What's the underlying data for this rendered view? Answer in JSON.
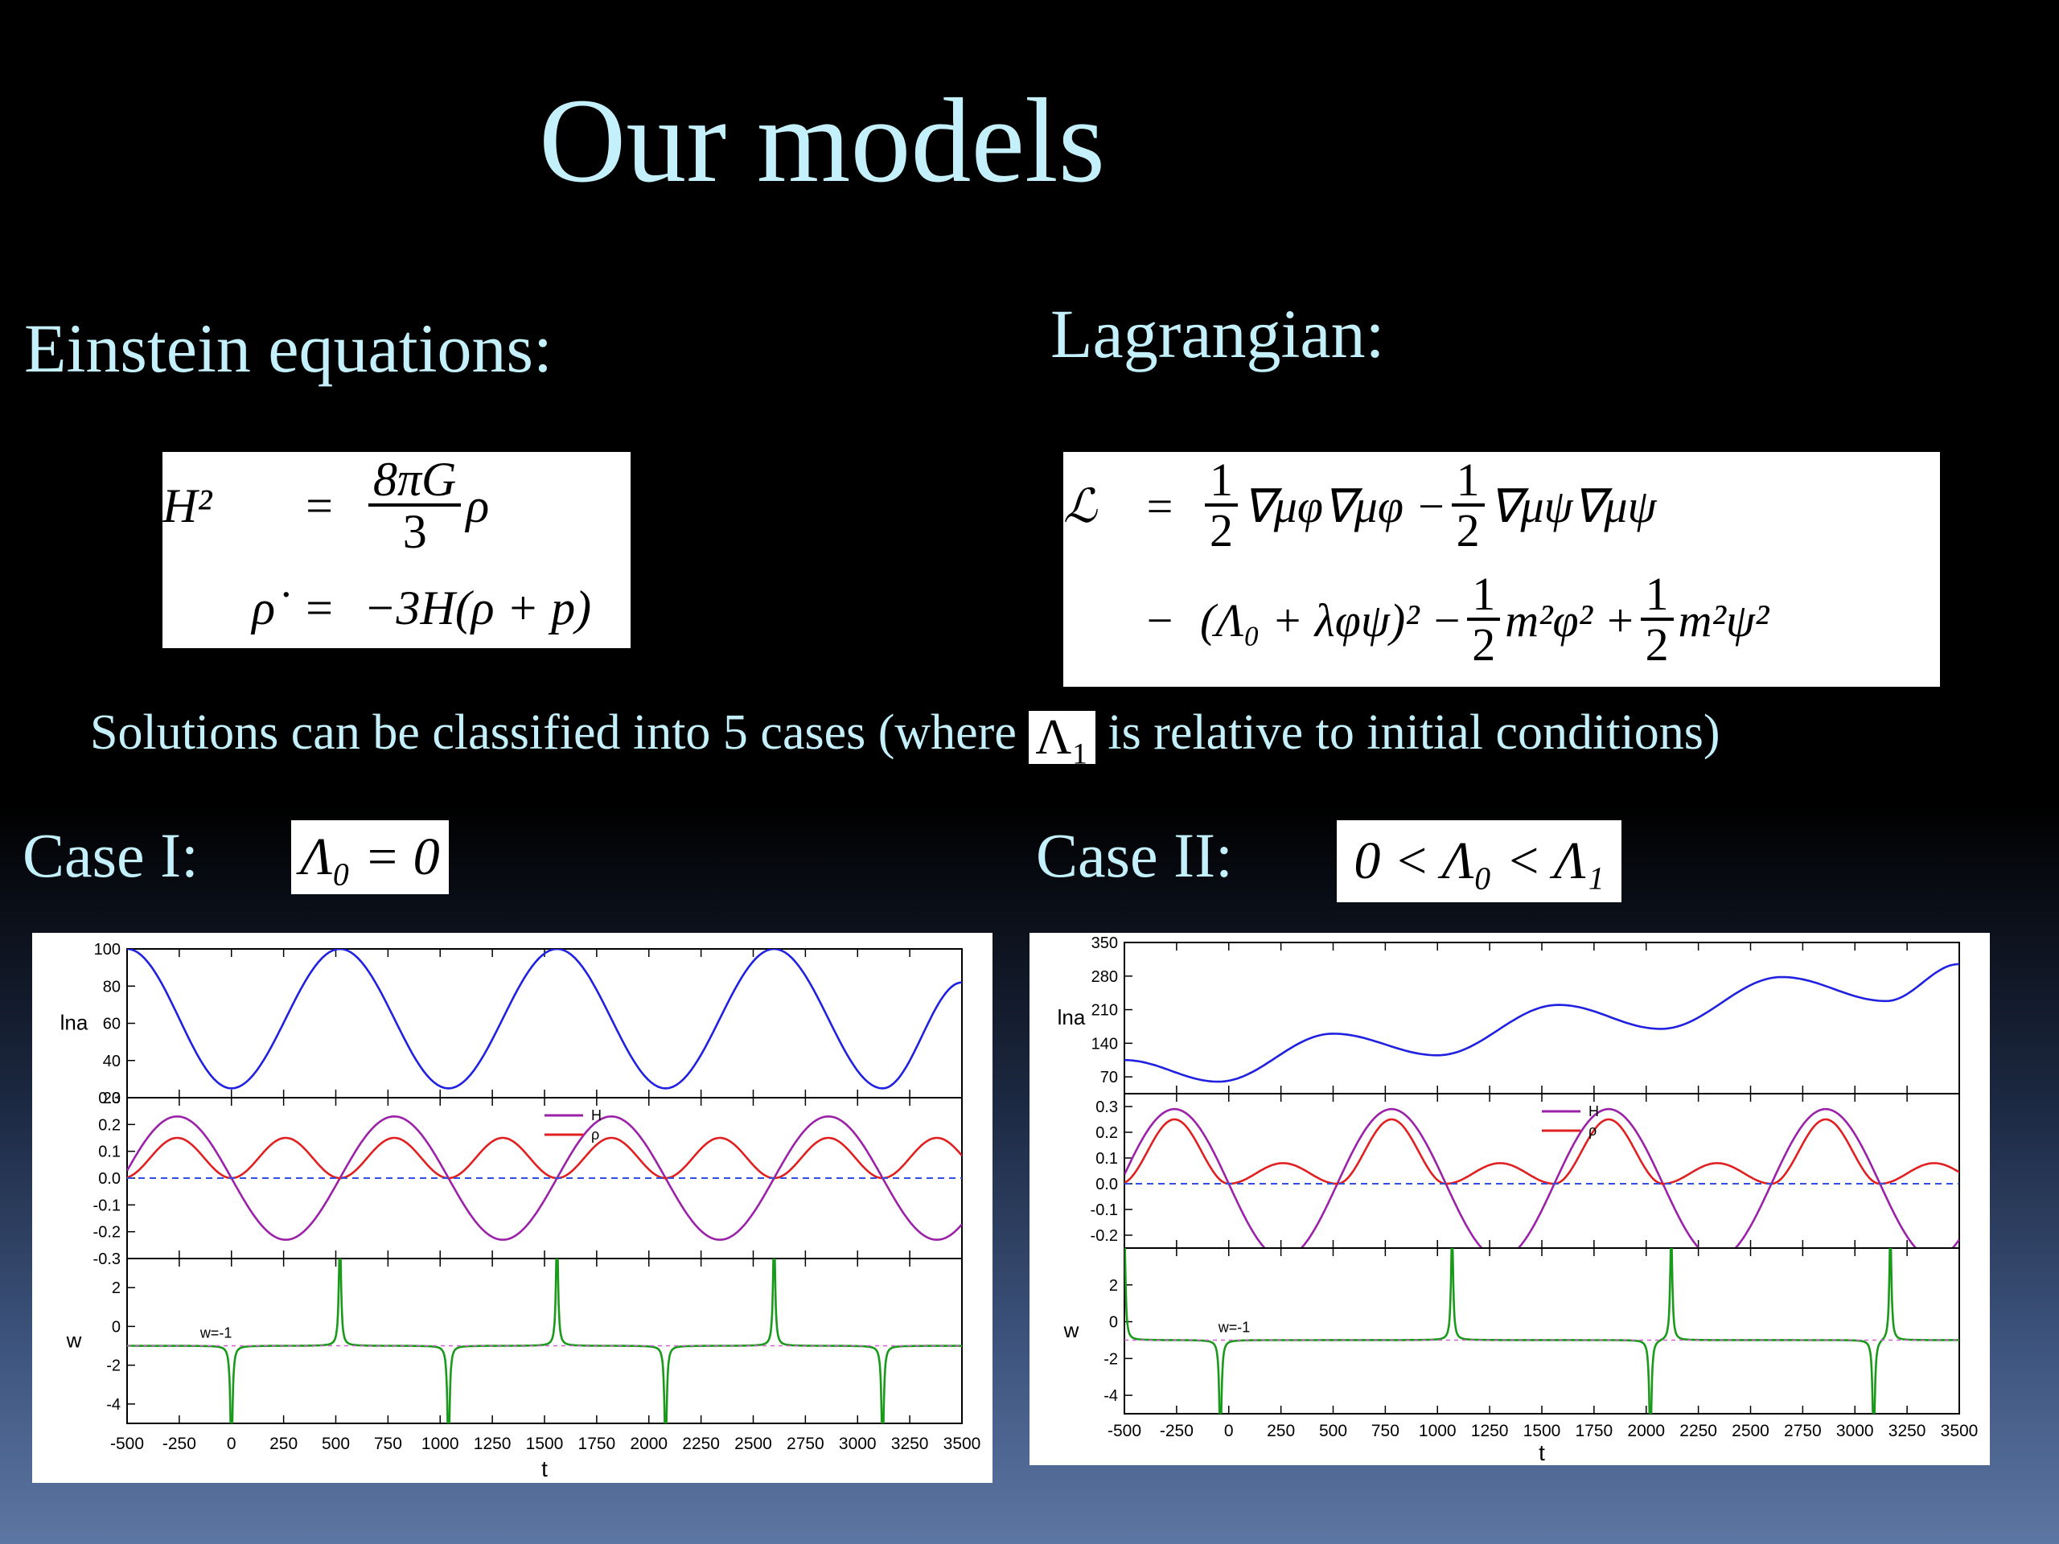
{
  "slide": {
    "title": "Our models",
    "left_heading": "Einstein equations:",
    "right_heading": "Lagrangian:",
    "note_prefix": "Solutions can be classified into 5 cases  (where",
    "note_chip": "Λ₁",
    "note_suffix": " is relative to initial conditions)",
    "case1_label": "Case I:",
    "case1_condition": "Λ₀ = 0",
    "case2_label": "Case II:",
    "case2_condition": "0 < Λ₀ < Λ₁"
  },
  "equations": {
    "einstein": {
      "row1_lhs": "H²",
      "eq": "=",
      "row1_num": "8πG",
      "row1_den": "3",
      "row1_tail": "ρ",
      "row2_lhs": "ρ̇",
      "row2_rhs": "−3H(ρ + p)"
    },
    "lagrangian": {
      "lhs": "ℒ",
      "eq": "=",
      "half": "1",
      "two": "2",
      "t1": "∇μφ∇μφ −",
      "t2": "∇μψ∇μψ",
      "row2_minus": "−",
      "row2_a": "(Λ₀ + λφψ)² −",
      "row2_b": "m²φ² +",
      "row2_c": "m²ψ²"
    }
  },
  "chart_data": [
    {
      "type": "line",
      "name_in_slide": "Case I",
      "xlabel": "t",
      "x_ticks": [
        -500,
        -250,
        0,
        250,
        500,
        750,
        1000,
        1250,
        1500,
        1750,
        2000,
        2250,
        2500,
        2750,
        3000,
        3250,
        3500
      ],
      "xlim": [
        -500,
        3500
      ],
      "panels": [
        {
          "ylabel": "lna",
          "ylim": [
            20,
            100
          ],
          "y_ticks": [
            20,
            40,
            60,
            80,
            100
          ],
          "series": [
            {
              "color": "#2020e0",
              "x": [
                -500,
                0,
                520,
                1040,
                1560,
                2080,
                2600,
                3120,
                3500
              ],
              "y": [
                100,
                25,
                100,
                25,
                100,
                25,
                100,
                25,
                82
              ]
            }
          ]
        },
        {
          "ylim": [
            -0.3,
            0.3
          ],
          "y_ticks": [
            -0.3,
            -0.2,
            -0.1,
            0.0,
            0.1,
            0.2,
            0.3
          ],
          "legend": [
            "H",
            "ρ"
          ],
          "series": [
            {
              "name": "H",
              "color": "#9b22a8",
              "amplitude": 0.23,
              "period": 1040,
              "phase_zero": 0
            },
            {
              "name": "ρ",
              "color": "#e02020",
              "max": 0.15,
              "min": 0.0,
              "period": 520
            },
            {
              "color": "#3050e0",
              "dashed": true,
              "constant": 0.0
            }
          ]
        },
        {
          "ylabel": "w",
          "ylim": [
            -5,
            3.5
          ],
          "y_ticks": [
            -4,
            -2,
            0,
            2
          ],
          "annotation": "w=-1",
          "series": [
            {
              "color": "#1a9a1a",
              "baseline": -1,
              "spikes_up": [
                520,
                1560,
                2600
              ],
              "spikes_down": [
                0,
                1040,
                2080,
                3120
              ]
            }
          ]
        }
      ]
    },
    {
      "type": "line",
      "name_in_slide": "Case II",
      "xlabel": "t",
      "x_ticks": [
        -500,
        -250,
        0,
        250,
        500,
        750,
        1000,
        1250,
        1500,
        1750,
        2000,
        2250,
        2500,
        2750,
        3000,
        3250,
        3500
      ],
      "xlim": [
        -500,
        3500
      ],
      "panels": [
        {
          "ylabel": "lna",
          "ylim": [
            35,
            350
          ],
          "y_ticks": [
            70,
            140,
            210,
            280,
            350
          ],
          "series": [
            {
              "color": "#2020e0",
              "x": [
                -500,
                -50,
                500,
                1000,
                1580,
                2070,
                2650,
                3150,
                3500
              ],
              "y": [
                105,
                60,
                160,
                115,
                220,
                170,
                278,
                228,
                305
              ]
            }
          ]
        },
        {
          "ylim": [
            -0.25,
            0.35
          ],
          "y_ticks": [
            -0.2,
            -0.1,
            0.0,
            0.1,
            0.2,
            0.3
          ],
          "legend": [
            "H",
            "ρ"
          ],
          "series": [
            {
              "name": "H",
              "color": "#9b22a8",
              "amplitude": 0.29,
              "period": 1040
            },
            {
              "name": "ρ",
              "color": "#e02020",
              "max_big": 0.25,
              "max_small": 0.08,
              "min": 0.0
            },
            {
              "color": "#3050e0",
              "dashed": true,
              "constant": 0.0
            }
          ]
        },
        {
          "ylabel": "w",
          "ylim": [
            -5,
            4
          ],
          "y_ticks": [
            -4,
            -2,
            0,
            2
          ],
          "annotation": "w=-1",
          "series": [
            {
              "color": "#1a9a1a",
              "baseline": -1,
              "spikes_up": [
                -500,
                1070,
                2120,
                3170
              ],
              "spikes_down": [
                -40,
                2020,
                3090
              ]
            }
          ]
        }
      ]
    }
  ]
}
